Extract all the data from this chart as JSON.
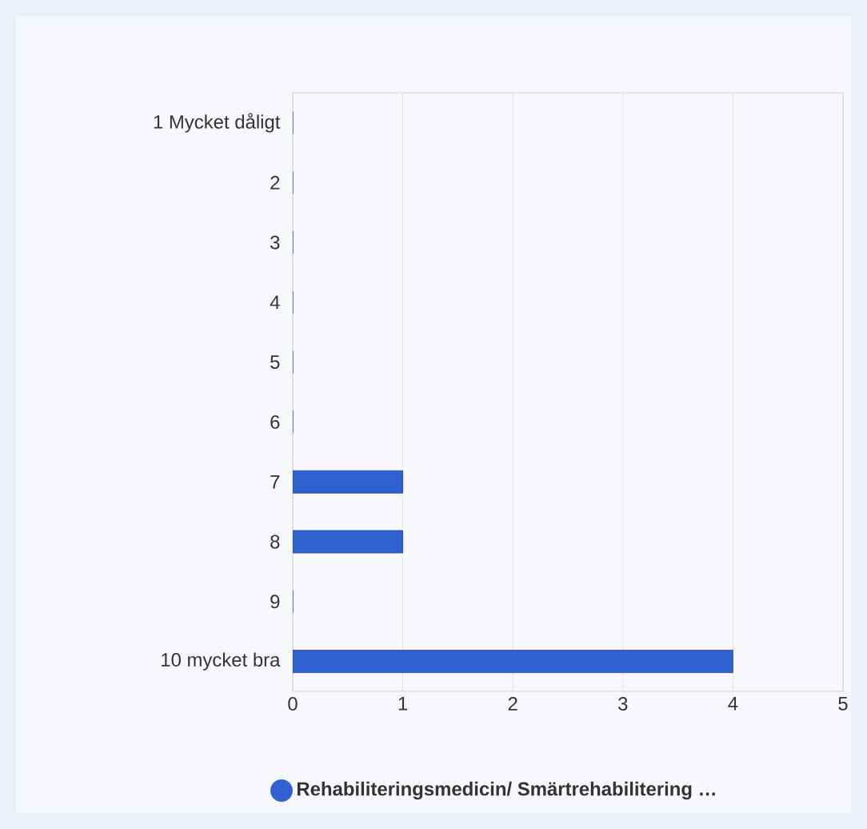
{
  "chart_data": {
    "type": "bar",
    "orientation": "horizontal",
    "categories": [
      "1 Mycket dåligt",
      "2",
      "3",
      "4",
      "5",
      "6",
      "7",
      "8",
      "9",
      "10 mycket bra"
    ],
    "series": [
      {
        "name": "Rehabiliteringsmedicin/ Smärtrehabilitering …",
        "color": "#2f62d0",
        "values": [
          0,
          0,
          0,
          0,
          0,
          0,
          1,
          1,
          0,
          4
        ]
      }
    ],
    "xlim": [
      0,
      5
    ],
    "xticks": [
      0,
      1,
      2,
      3,
      4,
      5
    ],
    "grid": "x",
    "legend": "bottom"
  }
}
